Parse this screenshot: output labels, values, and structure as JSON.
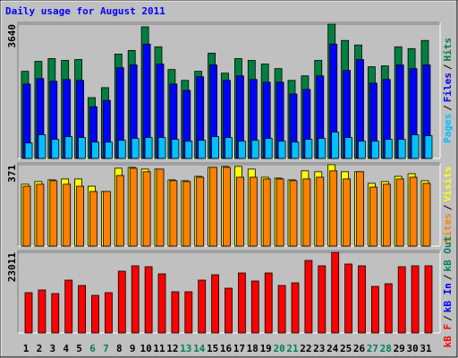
{
  "title": "Daily usage for August 2011",
  "legend_separator": "/",
  "chart_data": [
    {
      "type": "bar",
      "ylim": [
        0,
        3640
      ],
      "yticks": [
        3640
      ],
      "series": [
        {
          "name": "Pages",
          "color": "#00c0ff",
          "values": [
            418,
            640,
            517,
            590,
            566,
            443,
            443,
            492,
            541,
            566,
            566,
            517,
            467,
            492,
            590,
            566,
            467,
            492,
            541,
            467,
            443,
            517,
            541,
            713,
            566,
            467,
            467,
            517,
            517,
            640,
            615
          ]
        },
        {
          "name": "Files",
          "color": "#0000ff",
          "values": [
            2017,
            2165,
            2091,
            2140,
            2116,
            1402,
            1574,
            2460,
            2534,
            3100,
            2558,
            2017,
            1845,
            2214,
            2534,
            2116,
            2239,
            2140,
            2066,
            2066,
            1747,
            1870,
            2239,
            3100,
            2386,
            2681,
            2042,
            2140,
            2534,
            2435,
            2534
          ]
        },
        {
          "name": "Hits",
          "color": "#008040",
          "values": [
            2362,
            2632,
            2706,
            2657,
            2681,
            1648,
            1919,
            2829,
            2927,
            3567,
            3026,
            2411,
            2116,
            2362,
            2854,
            2312,
            2706,
            2657,
            2558,
            2435,
            2116,
            2239,
            2657,
            3640,
            3198,
            3075,
            2485,
            2509,
            3026,
            2977,
            3198
          ]
        }
      ]
    },
    {
      "type": "bar",
      "ylim": [
        0,
        371
      ],
      "yticks": [
        371
      ],
      "series": [
        {
          "name": "Sites",
          "color": "#ff8000",
          "values": [
            273,
            282,
            298,
            282,
            273,
            249,
            249,
            322,
            355,
            339,
            351,
            298,
            294,
            314,
            359,
            359,
            314,
            314,
            306,
            306,
            298,
            306,
            314,
            343,
            306,
            339,
            269,
            282,
            306,
            314,
            286
          ]
        },
        {
          "name": "Visits",
          "color": "#ffff00",
          "values": [
            282,
            294,
            302,
            306,
            306,
            273,
            249,
            355,
            359,
            351,
            351,
            302,
            298,
            318,
            359,
            363,
            363,
            351,
            314,
            310,
            302,
            343,
            339,
            371,
            339,
            339,
            286,
            294,
            318,
            330,
            298
          ]
        }
      ]
    },
    {
      "type": "bar",
      "ylim": [
        0,
        23011
      ],
      "yticks": [
        23011
      ],
      "categories": [
        "1",
        "2",
        "3",
        "4",
        "5",
        "6",
        "7",
        "8",
        "9",
        "10",
        "11",
        "12",
        "13",
        "14",
        "15",
        "16",
        "17",
        "18",
        "19",
        "20",
        "21",
        "22",
        "23",
        "24",
        "25",
        "26",
        "27",
        "28",
        "29",
        "30",
        "31"
      ],
      "category_colors": [
        "#000000",
        "#000000",
        "#000000",
        "#000000",
        "#000000",
        "#00805c",
        "#00805c",
        "#000000",
        "#000000",
        "#000000",
        "#000000",
        "#000000",
        "#00805c",
        "#00805c",
        "#000000",
        "#000000",
        "#000000",
        "#000000",
        "#000000",
        "#00805c",
        "#00805c",
        "#000000",
        "#000000",
        "#000000",
        "#000000",
        "#000000",
        "#00805c",
        "#00805c",
        "#000000",
        "#000000",
        "#000000"
      ],
      "series": [
        {
          "name": "kB F",
          "color": "#ff0000",
          "values": [
            11507,
            12274,
            11251,
            15086,
            13552,
            10739,
            11507,
            17643,
            19178,
            18922,
            16876,
            11762,
            11762,
            15086,
            16621,
            12785,
            17132,
            14831,
            17132,
            13552,
            14319,
            20712,
            19178,
            23011,
            19689,
            19178,
            13296,
            14064,
            18922,
            19178,
            19178
          ]
        },
        {
          "name": "kB In",
          "color": "#0000ff",
          "values": [
            0,
            0,
            0,
            0,
            0,
            0,
            0,
            0,
            0,
            0,
            0,
            0,
            0,
            0,
            0,
            0,
            0,
            0,
            0,
            0,
            0,
            0,
            0,
            0,
            0,
            0,
            0,
            0,
            0,
            0,
            0
          ]
        },
        {
          "name": "kB Out",
          "color": "#00805c",
          "values": [
            0,
            0,
            0,
            0,
            0,
            0,
            0,
            0,
            0,
            0,
            0,
            0,
            0,
            0,
            0,
            0,
            0,
            0,
            0,
            0,
            0,
            0,
            0,
            0,
            0,
            0,
            0,
            0,
            0,
            0,
            0
          ]
        }
      ]
    }
  ]
}
